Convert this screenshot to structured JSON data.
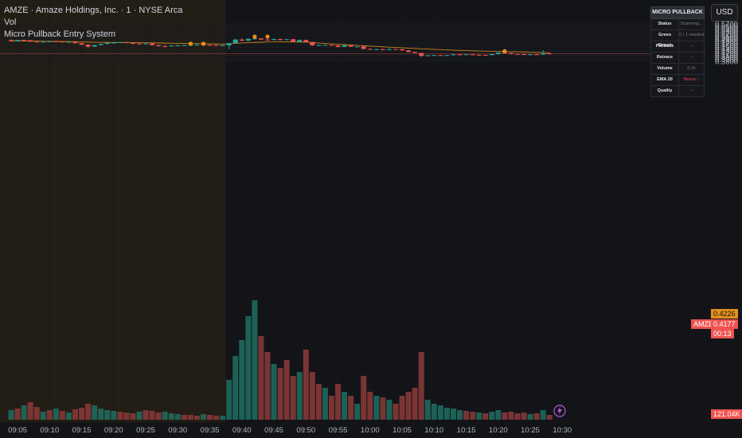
{
  "legend": {
    "title": "AMZE · Amaze Holdings, Inc. · 1 · NYSE Arca",
    "vol": "Vol",
    "indicator": "Micro Pullback Entry System"
  },
  "currency": "USD",
  "panel": {
    "title": "MICRO PULLBACK",
    "rows": [
      {
        "label": "Status",
        "value": "Scanning..."
      },
      {
        "label": "Green Streak",
        "value": "0 / 1 needed"
      },
      {
        "label": "Pullback",
        "value": "--"
      },
      {
        "label": "Retrace",
        "value": "--"
      },
      {
        "label": "Volume",
        "value": "0.2x"
      },
      {
        "label": "EMA 20",
        "value": "Below ↓"
      },
      {
        "label": "Quality",
        "value": "--"
      }
    ]
  },
  "price_axis": {
    "ticks": [
      "0.5700",
      "0.5600",
      "0.5500",
      "0.5400",
      "0.5300",
      "0.5200",
      "0.5100",
      "0.5000",
      "0.4900",
      "0.4800",
      "0.4700",
      "0.4600",
      "0.4500",
      "0.4400",
      "0.4300",
      "0.4200",
      "0.4100",
      "0.4000",
      "0.3900",
      "0.3800"
    ],
    "ema_tag": "0.4226",
    "last_symbol": "AMZE",
    "last_price": "0.4177",
    "countdown": "00:13",
    "volume_tag": "121.04K"
  },
  "time_axis": {
    "ticks": [
      "09:05",
      "09:10",
      "09:15",
      "09:20",
      "09:25",
      "09:30",
      "09:35",
      "09:40",
      "09:45",
      "09:50",
      "09:55",
      "10:00",
      "10:05",
      "10:10",
      "10:15",
      "10:20",
      "10:25",
      "10:30"
    ]
  },
  "colors": {
    "up": "#26a69a",
    "down": "#ef5350",
    "ema": "#c8821e",
    "premarket_bg": "#2a2214",
    "signal_dot": "#e8901c"
  },
  "chart_data": {
    "type": "candlestick",
    "start_time": "09:04",
    "interval": "1m",
    "ohlc": [
      [
        0.488,
        0.49,
        0.479,
        0.482
      ],
      [
        0.482,
        0.489,
        0.48,
        0.488
      ],
      [
        0.488,
        0.489,
        0.483,
        0.487
      ],
      [
        0.487,
        0.488,
        0.478,
        0.48
      ],
      [
        0.48,
        0.482,
        0.475,
        0.478
      ],
      [
        0.478,
        0.483,
        0.476,
        0.48
      ],
      [
        0.48,
        0.484,
        0.479,
        0.481
      ],
      [
        0.481,
        0.483,
        0.479,
        0.48
      ],
      [
        0.48,
        0.481,
        0.477,
        0.478
      ],
      [
        0.478,
        0.48,
        0.476,
        0.479
      ],
      [
        0.479,
        0.48,
        0.47,
        0.472
      ],
      [
        0.472,
        0.473,
        0.462,
        0.464
      ],
      [
        0.464,
        0.466,
        0.447,
        0.454
      ],
      [
        0.454,
        0.464,
        0.453,
        0.462
      ],
      [
        0.462,
        0.47,
        0.46,
        0.468
      ],
      [
        0.468,
        0.476,
        0.466,
        0.474
      ],
      [
        0.474,
        0.478,
        0.47,
        0.475
      ],
      [
        0.475,
        0.479,
        0.473,
        0.477
      ],
      [
        0.477,
        0.479,
        0.471,
        0.473
      ],
      [
        0.473,
        0.475,
        0.467,
        0.47
      ],
      [
        0.47,
        0.472,
        0.464,
        0.469
      ],
      [
        0.469,
        0.473,
        0.467,
        0.47
      ],
      [
        0.47,
        0.472,
        0.46,
        0.462
      ],
      [
        0.462,
        0.464,
        0.455,
        0.457
      ],
      [
        0.457,
        0.462,
        0.45,
        0.456
      ],
      [
        0.456,
        0.462,
        0.454,
        0.46
      ],
      [
        0.46,
        0.463,
        0.458,
        0.461
      ],
      [
        0.461,
        0.464,
        0.459,
        0.462
      ],
      [
        0.462,
        0.465,
        0.46,
        0.463
      ],
      [
        0.463,
        0.467,
        0.461,
        0.464
      ],
      [
        0.464,
        0.466,
        0.461,
        0.463
      ],
      [
        0.463,
        0.465,
        0.46,
        0.462
      ],
      [
        0.462,
        0.464,
        0.458,
        0.46
      ],
      [
        0.46,
        0.463,
        0.456,
        0.461
      ],
      [
        0.461,
        0.471,
        0.44,
        0.472
      ],
      [
        0.472,
        0.495,
        0.47,
        0.49
      ],
      [
        0.49,
        0.498,
        0.481,
        0.485
      ],
      [
        0.485,
        0.496,
        0.482,
        0.494
      ],
      [
        0.494,
        0.504,
        0.49,
        0.496
      ],
      [
        0.496,
        0.497,
        0.488,
        0.49
      ],
      [
        0.49,
        0.492,
        0.485,
        0.488
      ],
      [
        0.488,
        0.496,
        0.486,
        0.493
      ],
      [
        0.493,
        0.495,
        0.485,
        0.488
      ],
      [
        0.488,
        0.494,
        0.486,
        0.492
      ],
      [
        0.492,
        0.494,
        0.477,
        0.479
      ],
      [
        0.479,
        0.49,
        0.477,
        0.488
      ],
      [
        0.488,
        0.489,
        0.476,
        0.478
      ],
      [
        0.478,
        0.479,
        0.458,
        0.461
      ],
      [
        0.461,
        0.464,
        0.459,
        0.462
      ],
      [
        0.462,
        0.464,
        0.46,
        0.463
      ],
      [
        0.463,
        0.464,
        0.457,
        0.46
      ],
      [
        0.46,
        0.463,
        0.45,
        0.453
      ],
      [
        0.453,
        0.462,
        0.452,
        0.461
      ],
      [
        0.461,
        0.462,
        0.452,
        0.454
      ],
      [
        0.454,
        0.456,
        0.452,
        0.455
      ],
      [
        0.455,
        0.46,
        0.439,
        0.443
      ],
      [
        0.443,
        0.444,
        0.437,
        0.44
      ],
      [
        0.44,
        0.443,
        0.437,
        0.441
      ],
      [
        0.441,
        0.444,
        0.436,
        0.438
      ],
      [
        0.438,
        0.444,
        0.436,
        0.442
      ],
      [
        0.442,
        0.443,
        0.439,
        0.441
      ],
      [
        0.441,
        0.442,
        0.434,
        0.435
      ],
      [
        0.435,
        0.437,
        0.425,
        0.427
      ],
      [
        0.427,
        0.428,
        0.421,
        0.422
      ],
      [
        0.422,
        0.423,
        0.402,
        0.407
      ],
      [
        0.407,
        0.411,
        0.406,
        0.41
      ],
      [
        0.41,
        0.413,
        0.408,
        0.411
      ],
      [
        0.411,
        0.413,
        0.408,
        0.41
      ],
      [
        0.41,
        0.412,
        0.408,
        0.411
      ],
      [
        0.411,
        0.416,
        0.409,
        0.415
      ],
      [
        0.415,
        0.416,
        0.411,
        0.414
      ],
      [
        0.414,
        0.416,
        0.412,
        0.415
      ],
      [
        0.415,
        0.416,
        0.41,
        0.413
      ],
      [
        0.413,
        0.416,
        0.411,
        0.412
      ],
      [
        0.412,
        0.413,
        0.409,
        0.411
      ],
      [
        0.411,
        0.417,
        0.41,
        0.416
      ],
      [
        0.416,
        0.425,
        0.414,
        0.424
      ],
      [
        0.424,
        0.428,
        0.42,
        0.422
      ],
      [
        0.422,
        0.424,
        0.415,
        0.417
      ],
      [
        0.417,
        0.419,
        0.414,
        0.416
      ],
      [
        0.416,
        0.418,
        0.412,
        0.414
      ],
      [
        0.414,
        0.417,
        0.413,
        0.415
      ],
      [
        0.415,
        0.417,
        0.412,
        0.414
      ],
      [
        0.414,
        0.436,
        0.413,
        0.42
      ],
      [
        0.42,
        0.423,
        0.415,
        0.4177
      ]
    ],
    "volume": [
      [
        12,
        0
      ],
      [
        14,
        1
      ],
      [
        18,
        0
      ],
      [
        22,
        1
      ],
      [
        16,
        1
      ],
      [
        10,
        0
      ],
      [
        12,
        1
      ],
      [
        14,
        0
      ],
      [
        11,
        1
      ],
      [
        9,
        0
      ],
      [
        13,
        1
      ],
      [
        15,
        1
      ],
      [
        20,
        1
      ],
      [
        18,
        0
      ],
      [
        14,
        0
      ],
      [
        12,
        0
      ],
      [
        11,
        0
      ],
      [
        10,
        1
      ],
      [
        9,
        1
      ],
      [
        8,
        1
      ],
      [
        10,
        0
      ],
      [
        12,
        1
      ],
      [
        11,
        1
      ],
      [
        9,
        1
      ],
      [
        10,
        0
      ],
      [
        8,
        0
      ],
      [
        7,
        0
      ],
      [
        6,
        1
      ],
      [
        6,
        1
      ],
      [
        5,
        1
      ],
      [
        7,
        0
      ],
      [
        6,
        1
      ],
      [
        5,
        1
      ],
      [
        5,
        0
      ],
      [
        50,
        0
      ],
      [
        80,
        0
      ],
      [
        100,
        0
      ],
      [
        130,
        0
      ],
      [
        150,
        0
      ],
      [
        105,
        1
      ],
      [
        85,
        1
      ],
      [
        70,
        0
      ],
      [
        65,
        1
      ],
      [
        75,
        1
      ],
      [
        55,
        1
      ],
      [
        60,
        0
      ],
      [
        88,
        1
      ],
      [
        60,
        1
      ],
      [
        45,
        1
      ],
      [
        40,
        0
      ],
      [
        30,
        1
      ],
      [
        45,
        1
      ],
      [
        35,
        0
      ],
      [
        30,
        1
      ],
      [
        20,
        0
      ],
      [
        55,
        1
      ],
      [
        35,
        1
      ],
      [
        30,
        0
      ],
      [
        28,
        1
      ],
      [
        25,
        0
      ],
      [
        20,
        1
      ],
      [
        30,
        1
      ],
      [
        35,
        1
      ],
      [
        40,
        1
      ],
      [
        85,
        1
      ],
      [
        25,
        0
      ],
      [
        20,
        0
      ],
      [
        18,
        0
      ],
      [
        15,
        0
      ],
      [
        14,
        0
      ],
      [
        12,
        0
      ],
      [
        11,
        1
      ],
      [
        10,
        1
      ],
      [
        9,
        0
      ],
      [
        8,
        1
      ],
      [
        10,
        0
      ],
      [
        12,
        0
      ],
      [
        9,
        1
      ],
      [
        10,
        1
      ],
      [
        8,
        1
      ],
      [
        9,
        1
      ],
      [
        7,
        0
      ],
      [
        8,
        1
      ],
      [
        12,
        0
      ],
      [
        6,
        1
      ]
    ],
    "ema": [
      0.483,
      0.4829,
      0.4827,
      0.4825,
      0.482,
      0.4815,
      0.4812,
      0.4808,
      0.4804,
      0.48,
      0.4795,
      0.4787,
      0.4775,
      0.4767,
      0.4761,
      0.4758,
      0.4756,
      0.4754,
      0.4752,
      0.475,
      0.4745,
      0.4738,
      0.4732,
      0.4728,
      0.4722,
      0.4716,
      0.4711,
      0.4706,
      0.4701,
      0.4698,
      0.4693,
      0.4685,
      0.4678,
      0.467,
      0.469,
      0.471,
      0.473,
      0.4745,
      0.4757,
      0.4768,
      0.4779,
      0.4785,
      0.4787,
      0.4783,
      0.4779,
      0.4777,
      0.477,
      0.4748,
      0.4726,
      0.4706,
      0.4686,
      0.4665,
      0.4646,
      0.4628,
      0.461,
      0.459,
      0.457,
      0.4551,
      0.4534,
      0.4518,
      0.4502,
      0.4485,
      0.4467,
      0.4449,
      0.4432,
      0.4417,
      0.4403,
      0.4389,
      0.4376,
      0.4363,
      0.4351,
      0.434,
      0.433,
      0.432,
      0.4311,
      0.4303,
      0.4297,
      0.4291,
      0.4285,
      0.4279,
      0.4271,
      0.4262,
      0.425,
      0.4239,
      0.4226
    ],
    "signals": [
      [
        38,
        0.505
      ],
      [
        40,
        0.505
      ],
      [
        28,
        0.469
      ],
      [
        30,
        0.469
      ],
      [
        77,
        0.431
      ]
    ]
  }
}
